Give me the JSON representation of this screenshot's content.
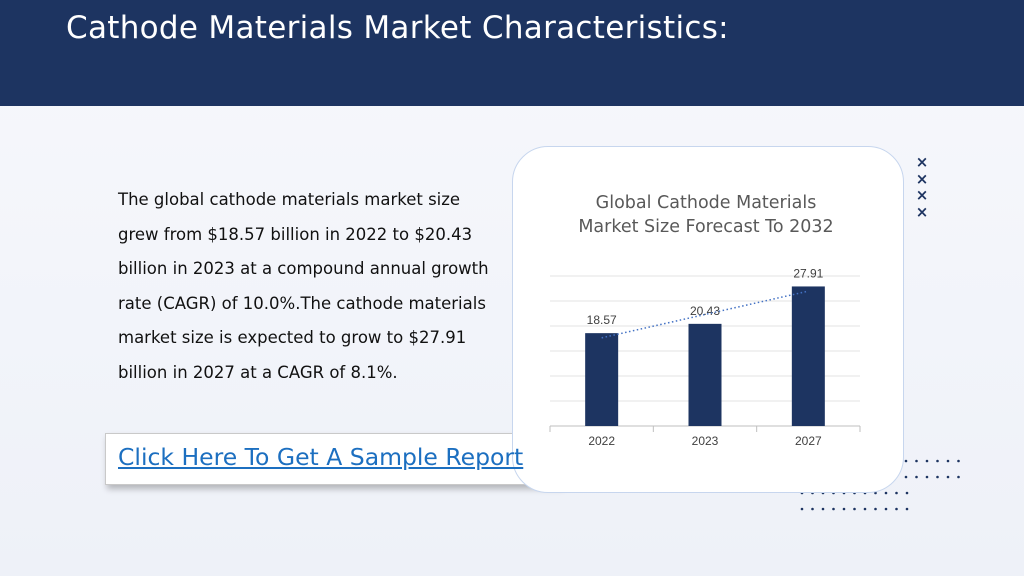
{
  "page": {
    "title": "Cathode Materials Market Characteristics:",
    "body_text": "The global cathode materials market size grew from $18.57 billion in 2022 to $20.43 billion in 2023 at a compound annual growth rate (CAGR) of 10.0%.The cathode materials market size is expected to grow to $27.91 billion in 2027 at a CAGR of 8.1%.",
    "sample_link": "Click Here To Get A Sample Report"
  },
  "decorations": {
    "x_marks_icon": "x-marks-icon",
    "x_marks": [
      "×",
      "×",
      "×",
      "×"
    ],
    "dot_grid_icon": "dot-grid-icon"
  },
  "colors": {
    "header": "#1d3461",
    "bar": "#1d3461",
    "link": "#1c6fc0",
    "trendline": "#4472c4"
  },
  "chart_data": {
    "type": "bar",
    "title": "Global Cathode Materials Market Size Forecast To 2032",
    "categories": [
      "2022",
      "2023",
      "2027"
    ],
    "values": [
      18.57,
      20.43,
      27.91
    ],
    "data_labels": [
      "18.57",
      "20.43",
      "27.91"
    ],
    "xlabel": "",
    "ylabel": "",
    "ylim": [
      0,
      30
    ],
    "grid": true,
    "trendline": "linear, dotted",
    "legend": "none"
  }
}
